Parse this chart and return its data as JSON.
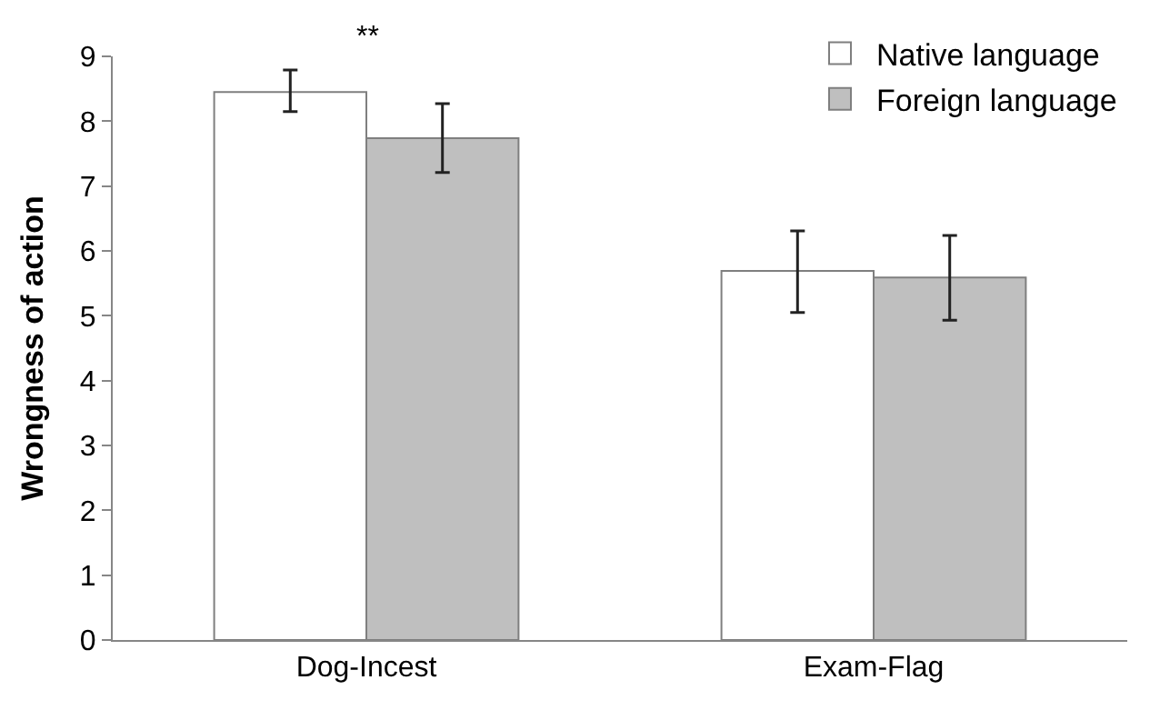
{
  "chart_data": {
    "type": "bar",
    "ylabel": "Wrongness of action",
    "categories": [
      "Dog-Incest",
      "Exam-Flag"
    ],
    "series": [
      {
        "name": "Native language",
        "color": "#ffffff",
        "values": [
          8.45,
          5.69
        ],
        "errors": [
          [
            8.15,
            8.79
          ],
          [
            5.05,
            6.31
          ]
        ]
      },
      {
        "name": "Foreign language",
        "color": "#bfbfbf",
        "values": [
          7.74,
          5.59
        ],
        "errors": [
          [
            7.21,
            8.27
          ],
          [
            4.93,
            6.24
          ]
        ]
      }
    ],
    "annotations": [
      "**"
    ],
    "ylim": [
      0,
      9
    ],
    "yticks": [
      0,
      1,
      2,
      3,
      4,
      5,
      6,
      7,
      8,
      9
    ],
    "legend": "top right"
  }
}
